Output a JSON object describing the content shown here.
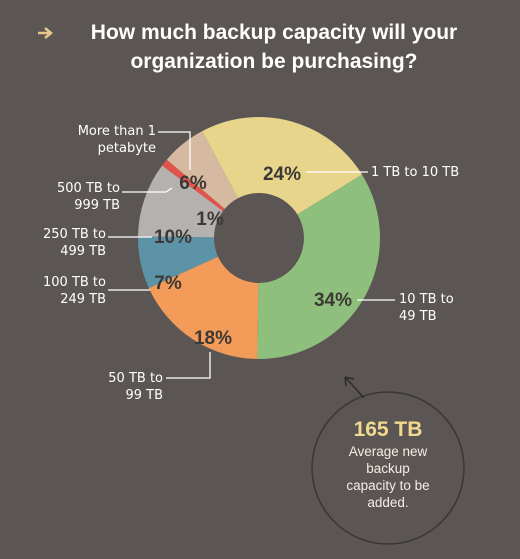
{
  "chart_data": {
    "type": "pie",
    "donut": true,
    "title": "How much backup capacity will your organization be purchasing?",
    "categories": [
      "1 TB to 10 TB",
      "10 TB to 49 TB",
      "50 TB to 99 TB",
      "100 TB to 249 TB",
      "250 TB to 499 TB",
      "500 TB to 999 TB",
      "More than 1 petabyte"
    ],
    "values": [
      24,
      34,
      18,
      7,
      10,
      1,
      6
    ],
    "value_labels": [
      "24%",
      "34%",
      "18%",
      "7%",
      "10%",
      "1%",
      "6%"
    ],
    "colors": [
      "#e8d58c",
      "#8fbf7c",
      "#f39b58",
      "#5c93a7",
      "#b4b1af",
      "#e0544b",
      "#d6b9a1"
    ],
    "annotations": [
      "165 TB",
      "Average new backup capacity to be added."
    ]
  }
}
